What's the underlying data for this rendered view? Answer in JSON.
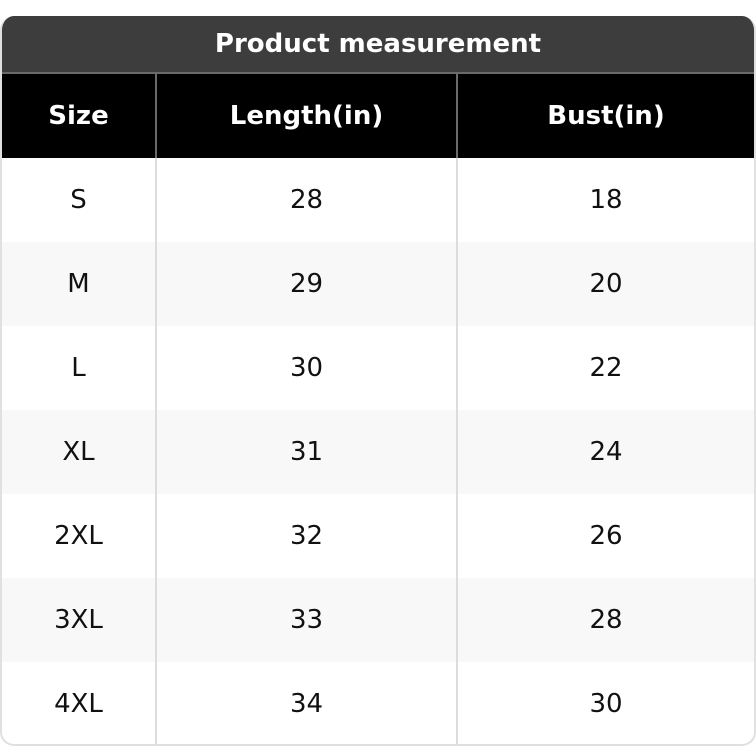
{
  "title": "Product measurement",
  "columns": [
    "Size",
    "Length(in)",
    "Bust(in)"
  ],
  "rows": [
    [
      "S",
      "28",
      "18"
    ],
    [
      "M",
      "29",
      "20"
    ],
    [
      "L",
      "30",
      "22"
    ],
    [
      "XL",
      "31",
      "24"
    ],
    [
      "2XL",
      "32",
      "26"
    ],
    [
      "3XL",
      "33",
      "28"
    ],
    [
      "4XL",
      "34",
      "30"
    ]
  ]
}
